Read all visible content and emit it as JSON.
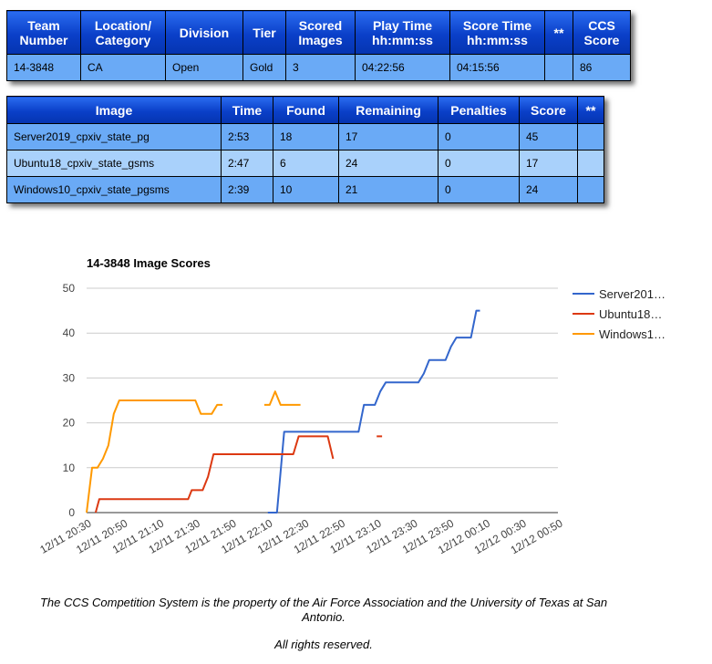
{
  "team_table": {
    "headers": [
      "Team\nNumber",
      "Location/\nCategory",
      "Division",
      "Tier",
      "Scored\nImages",
      "Play Time\nhh:mm:ss",
      "Score Time\nhh:mm:ss",
      "**",
      "CCS\nScore"
    ],
    "row": [
      "14-3848",
      "CA",
      "Open",
      "Gold",
      "3",
      "04:22:56",
      "04:15:56",
      "",
      "86"
    ]
  },
  "image_table": {
    "headers": [
      "Image",
      "Time",
      "Found",
      "Remaining",
      "Penalties",
      "Score",
      "**"
    ],
    "rows": [
      [
        "Server2019_cpxiv_state_pg",
        "2:53",
        "18",
        "17",
        "0",
        "45",
        ""
      ],
      [
        "Ubuntu18_cpxiv_state_gsms",
        "2:47",
        "6",
        "24",
        "0",
        "17",
        ""
      ],
      [
        "Windows10_cpxiv_state_pgsms",
        "2:39",
        "10",
        "21",
        "0",
        "24",
        ""
      ]
    ]
  },
  "chart_data": {
    "type": "line",
    "title": "14-3848 Image Scores",
    "xlabel": "",
    "ylabel": "",
    "ylim": [
      0,
      50
    ],
    "yticks": [
      0,
      10,
      20,
      30,
      40,
      50
    ],
    "xticks": [
      "12/11 20:30",
      "12/11 20:50",
      "12/11 21:10",
      "12/11 21:30",
      "12/11 21:50",
      "12/11 22:10",
      "12/11 22:30",
      "12/11 22:50",
      "12/11 23:10",
      "12/11 23:30",
      "12/11 23:50",
      "12/12 00:10",
      "12/12 00:30",
      "12/12 00:50"
    ],
    "grid": true,
    "legend_position": "right",
    "series": [
      {
        "name": "Server2019_cpxiv_state_pg",
        "legend_label": "Server201…",
        "color": "#3366cc",
        "points": [
          [
            "12/11 22:10",
            0
          ],
          [
            "12/11 22:15",
            0
          ],
          [
            "12/11 22:19",
            18
          ],
          [
            "12/11 22:35",
            18
          ],
          [
            "12/11 23:00",
            18
          ],
          [
            "12/11 23:03",
            24
          ],
          [
            "12/11 23:09",
            24
          ],
          [
            "12/11 23:12",
            27
          ],
          [
            "12/11 23:15",
            29
          ],
          [
            "12/11 23:27",
            29
          ],
          [
            "12/11 23:33",
            29
          ],
          [
            "12/11 23:36",
            31
          ],
          [
            "12/11 23:39",
            34
          ],
          [
            "12/11 23:48",
            34
          ],
          [
            "12/11 23:51",
            37
          ],
          [
            "12/11 23:54",
            39
          ],
          [
            "12/12 00:02",
            39
          ],
          [
            "12/12 00:05",
            45
          ],
          [
            "12/12 00:07",
            45
          ]
        ]
      },
      {
        "name": "Ubuntu18_cpxiv_state_gsms",
        "legend_label": "Ubuntu18…",
        "color": "#dc3912",
        "points": [
          [
            "12/11 20:35",
            0
          ],
          [
            "12/11 20:37",
            3
          ],
          [
            "12/11 21:26",
            3
          ],
          [
            "12/11 21:28",
            5
          ],
          [
            "12/11 21:34",
            5
          ],
          [
            "12/11 21:37",
            8
          ],
          [
            "12/11 21:40",
            13
          ],
          [
            "12/11 22:00",
            13
          ],
          [
            "12/11 22:05",
            13
          ],
          [
            "12/11 22:24",
            13
          ],
          [
            "12/11 22:27",
            17
          ],
          [
            "12/11 22:39",
            17
          ],
          [
            "12/11 22:43",
            17
          ],
          [
            "12/11 22:46",
            12
          ],
          null,
          [
            "12/11 23:10",
            17
          ],
          [
            "12/11 23:13",
            17
          ]
        ]
      },
      {
        "name": "Windows10_cpxiv_state_pgsms",
        "legend_label": "Windows1…",
        "color": "#ff9900",
        "points": [
          [
            "12/11 20:30",
            0
          ],
          [
            "12/11 20:33",
            10
          ],
          [
            "12/11 20:36",
            10
          ],
          [
            "12/11 20:39",
            12
          ],
          [
            "12/11 20:42",
            15
          ],
          [
            "12/11 20:45",
            22
          ],
          [
            "12/11 20:48",
            25
          ],
          [
            "12/11 21:30",
            25
          ],
          [
            "12/11 21:33",
            22
          ],
          [
            "12/11 21:39",
            22
          ],
          [
            "12/11 21:42",
            24
          ],
          [
            "12/11 21:45",
            24
          ],
          null,
          [
            "12/11 22:08",
            24
          ],
          [
            "12/11 22:11",
            24
          ],
          [
            "12/11 22:14",
            27
          ],
          [
            "12/11 22:17",
            24
          ],
          [
            "12/11 22:26",
            24
          ],
          [
            "12/11 22:28",
            24
          ]
        ]
      }
    ]
  },
  "footer": {
    "line1": "The CCS Competition System is the property of the Air Force Association and the University of Texas at San Antonio.",
    "line2": "All rights reserved."
  }
}
